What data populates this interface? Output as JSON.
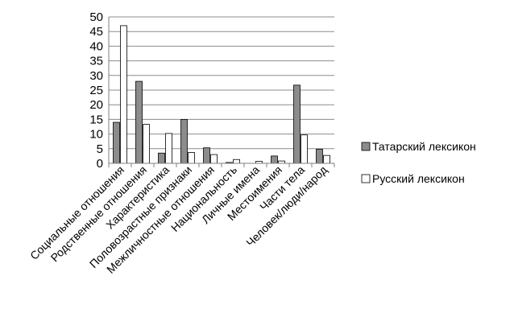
{
  "chart_data": {
    "type": "bar",
    "title": "",
    "xlabel": "",
    "ylabel": "",
    "ylim": [
      0,
      50
    ],
    "yticks": [
      0,
      5,
      10,
      15,
      20,
      25,
      30,
      35,
      40,
      45,
      50
    ],
    "grid": "horizontal",
    "legend_position": "right",
    "categories": [
      "Социальные отношения",
      "Родственные отношения",
      "Характеристика",
      "Половозрастные признаки",
      "Межличностные отношения",
      "Национальность",
      "Личные имена",
      "Местоимения",
      "Части тела",
      "Человек/люди/народ"
    ],
    "series": [
      {
        "name": "Татарский лексикон",
        "color": "#8c8c8c",
        "values": [
          14,
          28,
          3.5,
          15,
          5.3,
          0.3,
          0,
          2.5,
          26.7,
          4.8
        ]
      },
      {
        "name": "Русский лексикон",
        "color": "#ffffff",
        "values": [
          47,
          13.3,
          10.2,
          3.7,
          3,
          1.3,
          0.7,
          0.8,
          9.7,
          2.7
        ]
      }
    ]
  }
}
